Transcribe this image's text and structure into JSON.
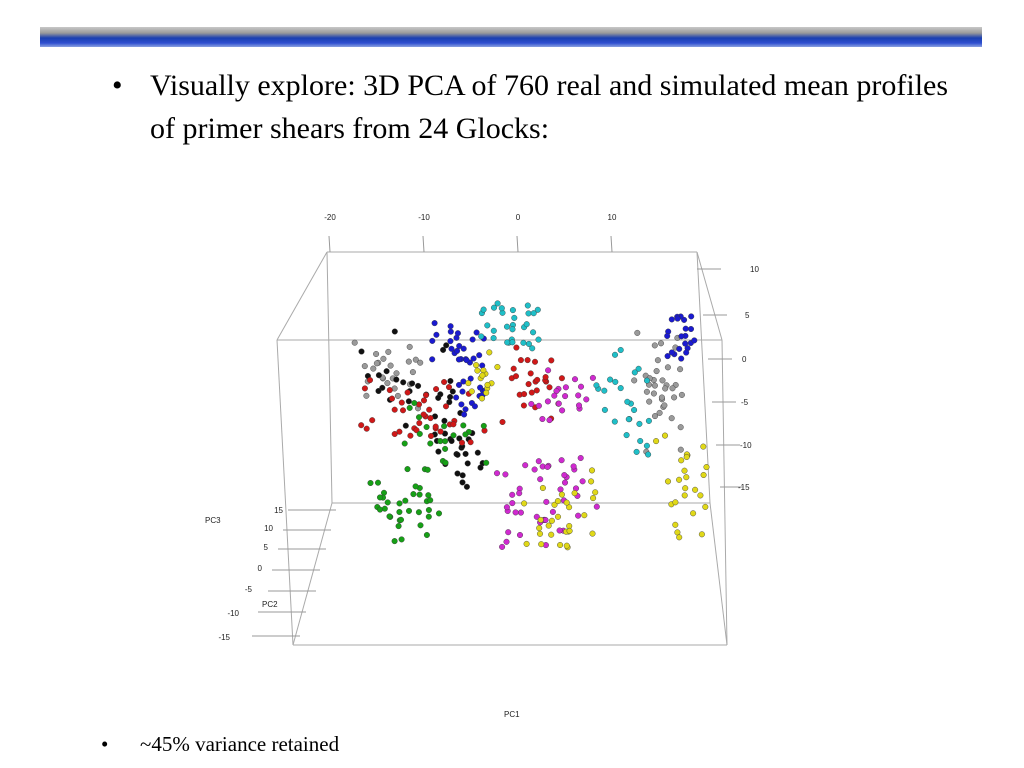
{
  "bullets": [
    "Visually explore: 3D PCA of 760 real and simulated mean profiles of primer shears from 24 Glocks:",
    "~45% variance retained"
  ],
  "plot": {
    "axis_labels": {
      "pc1": "PC1",
      "pc2": "PC2",
      "pc3": "PC3"
    },
    "top_ticks": [
      "-20",
      "-10",
      "0",
      "10"
    ],
    "right_ticks": [
      "10",
      "5",
      "0",
      "-5",
      "-10",
      "-15"
    ],
    "left_ticks": [
      "15",
      "10",
      "5",
      "0",
      "-5",
      "-10",
      "-15"
    ]
  }
}
